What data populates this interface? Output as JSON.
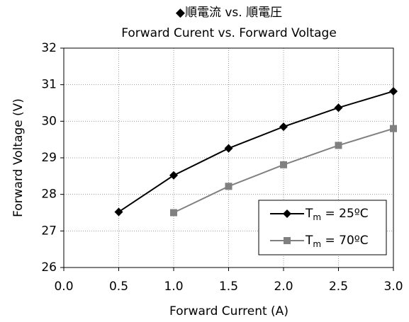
{
  "chart_data": {
    "type": "line",
    "title": "◆順電流 vs. 順電圧",
    "subtitle": "Forward Curent vs. Forward Voltage",
    "x_label": "Forward Current (A)",
    "y_label": "Forward Voltage (V)",
    "xlim": [
      0,
      3
    ],
    "xticks": [
      {
        "value": 0,
        "label": "0.0"
      },
      {
        "value": 0.5,
        "label": "0.5"
      },
      {
        "value": 1,
        "label": "1.0"
      },
      {
        "value": 1.5,
        "label": "1.5"
      },
      {
        "value": 2,
        "label": "2.0"
      },
      {
        "value": 2.5,
        "label": "2.5"
      },
      {
        "value": 3,
        "label": "3.0"
      }
    ],
    "ylim": [
      26,
      32
    ],
    "yticks": [
      26,
      27,
      28,
      29,
      30,
      31,
      32
    ],
    "grid": true,
    "legend": "lower-right",
    "series": [
      {
        "name": "Tm = 25ºC",
        "color": "#000000",
        "marker": "diamond",
        "x": [
          0.5,
          1,
          1.5,
          2,
          2.5,
          3
        ],
        "values": [
          27.52,
          28.52,
          29.26,
          29.85,
          30.37,
          30.82
        ]
      },
      {
        "name": "Tm = 70ºC",
        "color": "#808080",
        "marker": "square",
        "x": [
          1,
          1.5,
          2,
          2.5,
          3
        ],
        "values": [
          27.5,
          28.22,
          28.81,
          29.34,
          29.8
        ]
      }
    ]
  }
}
